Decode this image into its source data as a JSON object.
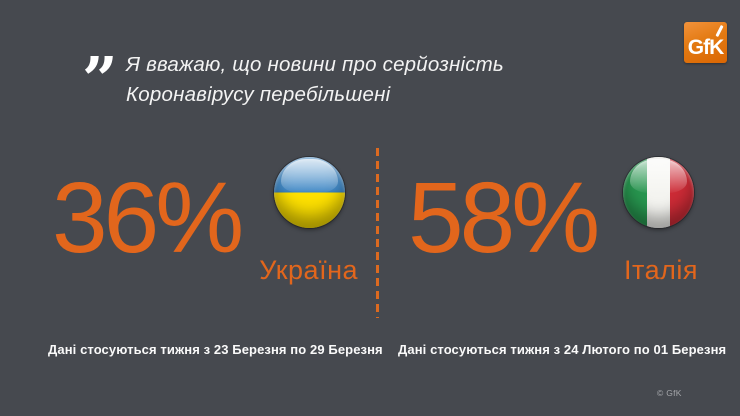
{
  "colors": {
    "background": "#46494f",
    "accent_orange": "#e2661c",
    "logo_orange": "#e37a12",
    "text_white": "#f3f3f3",
    "flag_ukraine_blue": "#3d86c4",
    "flag_ukraine_yellow": "#ffe100",
    "flag_italy_green": "#27964f",
    "flag_italy_red": "#cd2b36"
  },
  "logo": {
    "text": "GfK"
  },
  "quote": {
    "mark": "”",
    "line1": "Я вважаю, що новини про серйозність",
    "line2": "Коронавірусу перебільшені"
  },
  "left_stat": {
    "value": "36%",
    "country": "Україна",
    "flag": "ukraine-flag",
    "caption": "Дані стосуються тижня з 23 Березня по 29 Березня"
  },
  "right_stat": {
    "value": "58%",
    "country": "Італія",
    "flag": "italy-flag",
    "caption": "Дані стосуються тижня з 24 Лютого по 01 Березня"
  },
  "footer": {
    "copyright": "© GfK"
  },
  "chart_data": {
    "type": "table",
    "title": "Я вважаю, що новини про серйозність Коронавірусу перебільшені",
    "categories": [
      "Україна",
      "Італія"
    ],
    "values": [
      36,
      58
    ],
    "unit": "%",
    "notes": [
      "Дані стосуються тижня з 23 Березня по 29 Березня",
      "Дані стосуються тижня з 24 Лютого по 01 Березня"
    ],
    "source": "GfK"
  }
}
